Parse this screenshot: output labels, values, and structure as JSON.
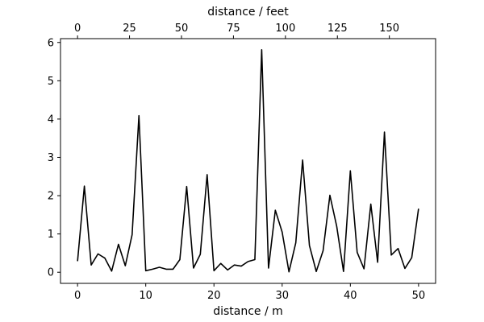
{
  "chart_data": {
    "type": "line",
    "xlabel": "distance / m",
    "secondary_xlabel": "distance / feet",
    "xlim": [
      -2.5,
      52.5
    ],
    "ylim": [
      -0.29,
      6.1
    ],
    "xticks": [
      0,
      10,
      20,
      30,
      40,
      50
    ],
    "yticks": [
      0,
      1,
      2,
      3,
      4,
      5,
      6
    ],
    "secondary_xticks": [
      0,
      25,
      50,
      75,
      100,
      125,
      150
    ],
    "grid": false,
    "series": [
      {
        "color": "#000000",
        "x": [
          0,
          1,
          2,
          3,
          4,
          5,
          6,
          7,
          8,
          9,
          10,
          11,
          12,
          13,
          14,
          15,
          16,
          17,
          18,
          19,
          20,
          21,
          22,
          23,
          24,
          25,
          26,
          27,
          28,
          29,
          30,
          31,
          32,
          33,
          34,
          35,
          36,
          37,
          38,
          39,
          40,
          41,
          42,
          43,
          44,
          45,
          46,
          47,
          48,
          49,
          50
        ],
        "y": [
          0.29,
          2.25,
          0.19,
          0.48,
          0.37,
          0.03,
          0.73,
          0.17,
          0.98,
          4.09,
          0.04,
          0.08,
          0.13,
          0.08,
          0.08,
          0.33,
          2.24,
          0.11,
          0.47,
          2.55,
          0.04,
          0.23,
          0.06,
          0.19,
          0.16,
          0.28,
          0.33,
          5.81,
          0.11,
          1.62,
          1.05,
          0.01,
          0.77,
          2.93,
          0.7,
          0.02,
          0.56,
          2.01,
          1.2,
          0.02,
          2.65,
          0.52,
          0.09,
          1.78,
          0.26,
          3.66,
          0.45,
          0.62,
          0.1,
          0.38,
          1.66
        ]
      }
    ]
  }
}
